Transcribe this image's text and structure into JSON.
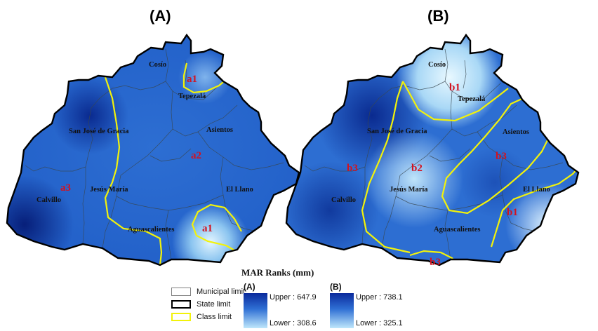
{
  "panels": [
    {
      "title": "(A)",
      "municipalities": [
        "Cosío",
        "Tepezalá",
        "Asientos",
        "San José de Gracia",
        "Jesús María",
        "Calvillo",
        "El Llano",
        "Aguascalientes"
      ],
      "classes": [
        "a1",
        "a2",
        "a3",
        "a1"
      ]
    },
    {
      "title": "(B)",
      "municipalities": [
        "Cosío",
        "Tepezalá",
        "Asientos",
        "San José de Gracia",
        "Jesús María",
        "Calvillo",
        "El Llano",
        "Aguascalientes"
      ],
      "classes": [
        "b1",
        "b2",
        "b3",
        "b3",
        "b1",
        "b3"
      ]
    }
  ],
  "legend": {
    "title": "MAR Ranks (mm)",
    "items": [
      {
        "label": "Municipal limit",
        "color": "#808080"
      },
      {
        "label": "State limit",
        "color": "#000000"
      },
      {
        "label": "Class limit",
        "color": "#f2f20a"
      }
    ],
    "ramps": [
      {
        "title": "(A)",
        "upper": "Upper : 647.9",
        "lower": "Lower : 308.6"
      },
      {
        "title": "(B)",
        "upper": "Upper : 738.1",
        "lower": "Lower : 325.1"
      }
    ]
  },
  "colors": {
    "dark": "#0b2f9f",
    "mid": "#2a6bd0",
    "light": "#c3e8fb",
    "class_line": "#f2f20a",
    "class_label": "#d3121f"
  }
}
